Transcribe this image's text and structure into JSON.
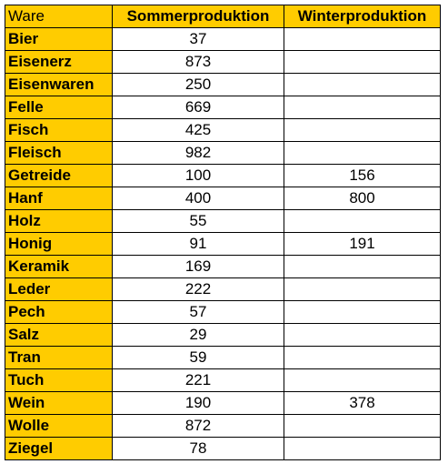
{
  "table": {
    "headers": [
      "Ware",
      "Sommerproduktion",
      "Winterproduktion"
    ],
    "rows": [
      [
        "Bier",
        "37",
        ""
      ],
      [
        "Eisenerz",
        "873",
        ""
      ],
      [
        "Eisenwaren",
        "250",
        ""
      ],
      [
        "Felle",
        "669",
        ""
      ],
      [
        "Fisch",
        "425",
        ""
      ],
      [
        "Fleisch",
        "982",
        ""
      ],
      [
        "Getreide",
        "100",
        "156"
      ],
      [
        "Hanf",
        "400",
        "800"
      ],
      [
        "Holz",
        "55",
        ""
      ],
      [
        "Honig",
        "91",
        "191"
      ],
      [
        "Keramik",
        "169",
        ""
      ],
      [
        "Leder",
        "222",
        ""
      ],
      [
        "Pech",
        "57",
        ""
      ],
      [
        "Salz",
        "29",
        ""
      ],
      [
        "Tran",
        "59",
        ""
      ],
      [
        "Tuch",
        "221",
        ""
      ],
      [
        "Wein",
        "190",
        "378"
      ],
      [
        "Wolle",
        "872",
        ""
      ],
      [
        "Ziegel",
        "78",
        ""
      ]
    ]
  },
  "colors": {
    "header_fill": "#FFCC00",
    "body_fill": "#FFFFFF",
    "border": "#000000"
  }
}
